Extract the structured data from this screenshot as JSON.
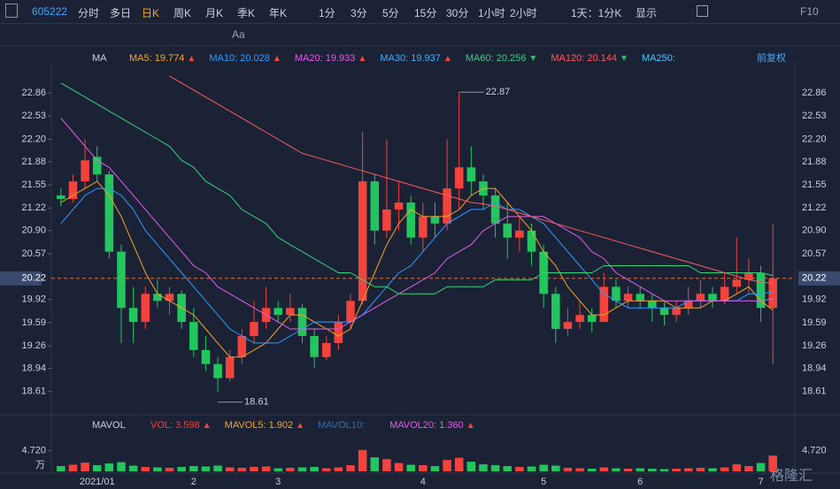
{
  "toolbar": {
    "code": "605222",
    "tabs": [
      "分时",
      "多日",
      "日K",
      "周K",
      "月K",
      "季K",
      "年K",
      "1分",
      "3分",
      "5分",
      "15分",
      "30分",
      "1小时",
      "2小时"
    ],
    "active_tab": 2,
    "period": "1天：1分K",
    "display": "显示",
    "f10": "F10",
    "text_tool": "Aa"
  },
  "chart_data": {
    "type": "candlestick",
    "ma_label": "MA",
    "adjust": "前复权",
    "legend": [
      {
        "label": "MA5: 19.774",
        "color": "#f5a623",
        "trend": "up"
      },
      {
        "label": "MA10: 20.028",
        "color": "#2f9bff",
        "trend": "up"
      },
      {
        "label": "MA20: 19.933",
        "color": "#e05ee8",
        "trend": "up"
      },
      {
        "label": "MA30: 19.937",
        "color": "#3ab0ff",
        "trend": "up"
      },
      {
        "label": "MA60: 20.256",
        "color": "#36d27a",
        "trend": "down"
      },
      {
        "label": "MA120: 20.144",
        "color": "#ff5a5a",
        "trend": "down"
      },
      {
        "label": "MA250:",
        "color": "#4fc3f7"
      }
    ],
    "categories": [
      null,
      null,
      null,
      "2021/01",
      null,
      null,
      null,
      null,
      null,
      null,
      null,
      "2",
      null,
      null,
      null,
      null,
      null,
      null,
      "3",
      null,
      null,
      null,
      null,
      null,
      null,
      null,
      null,
      null,
      null,
      null,
      "4",
      null,
      null,
      null,
      null,
      null,
      null,
      null,
      null,
      null,
      "5",
      null,
      null,
      null,
      null,
      null,
      null,
      null,
      "6",
      null,
      null,
      null,
      null,
      null,
      null,
      null,
      null,
      null,
      "7",
      null
    ],
    "candles": [
      [
        21.4,
        21.5,
        21.25,
        21.35
      ],
      [
        21.35,
        21.7,
        21.3,
        21.6
      ],
      [
        21.6,
        22.2,
        21.5,
        21.9
      ],
      [
        21.95,
        22.1,
        21.6,
        21.7
      ],
      [
        21.7,
        21.75,
        20.5,
        20.6
      ],
      [
        20.6,
        20.7,
        19.3,
        19.8
      ],
      [
        19.8,
        20.1,
        19.3,
        19.6
      ],
      [
        19.6,
        20.1,
        19.5,
        20.0
      ],
      [
        20.0,
        20.2,
        19.8,
        19.9
      ],
      [
        19.9,
        20.1,
        19.7,
        20.0
      ],
      [
        20.0,
        20.05,
        19.5,
        19.6
      ],
      [
        19.6,
        19.8,
        19.1,
        19.2
      ],
      [
        19.2,
        19.4,
        18.9,
        19.0
      ],
      [
        19.0,
        19.1,
        18.61,
        18.8
      ],
      [
        18.8,
        19.2,
        18.75,
        19.1
      ],
      [
        19.1,
        19.5,
        19.0,
        19.4
      ],
      [
        19.4,
        19.9,
        19.3,
        19.6
      ],
      [
        19.6,
        20.1,
        19.5,
        19.8
      ],
      [
        19.8,
        19.9,
        19.6,
        19.7
      ],
      [
        19.7,
        20.0,
        19.6,
        19.8
      ],
      [
        19.8,
        19.85,
        19.3,
        19.4
      ],
      [
        19.4,
        19.5,
        18.95,
        19.1
      ],
      [
        19.1,
        19.4,
        19.05,
        19.3
      ],
      [
        19.3,
        19.7,
        19.2,
        19.6
      ],
      [
        19.6,
        20.0,
        19.5,
        19.9
      ],
      [
        19.9,
        22.3,
        19.85,
        21.6
      ],
      [
        21.6,
        21.7,
        20.7,
        20.9
      ],
      [
        20.9,
        22.2,
        20.8,
        21.2
      ],
      [
        21.2,
        21.6,
        20.9,
        21.3
      ],
      [
        21.3,
        21.4,
        20.7,
        20.8
      ],
      [
        20.8,
        21.3,
        20.6,
        21.1
      ],
      [
        21.1,
        21.3,
        20.8,
        21.0
      ],
      [
        21.0,
        22.2,
        20.9,
        21.5
      ],
      [
        21.5,
        22.87,
        21.2,
        21.8
      ],
      [
        21.8,
        22.1,
        21.4,
        21.6
      ],
      [
        21.6,
        21.7,
        21.2,
        21.4
      ],
      [
        21.4,
        21.5,
        20.8,
        21.0
      ],
      [
        21.0,
        21.3,
        20.5,
        20.8
      ],
      [
        20.8,
        21.1,
        20.6,
        20.9
      ],
      [
        20.9,
        21.0,
        20.4,
        20.6
      ],
      [
        20.6,
        20.7,
        19.8,
        20.0
      ],
      [
        20.0,
        20.1,
        19.3,
        19.5
      ],
      [
        19.5,
        19.8,
        19.4,
        19.6
      ],
      [
        19.6,
        19.9,
        19.5,
        19.7
      ],
      [
        19.7,
        19.8,
        19.45,
        19.6
      ],
      [
        19.6,
        20.3,
        19.6,
        20.1
      ],
      [
        20.1,
        20.2,
        19.8,
        19.9
      ],
      [
        19.9,
        20.1,
        19.8,
        20.0
      ],
      [
        20.0,
        20.1,
        19.8,
        19.9
      ],
      [
        19.9,
        20.0,
        19.6,
        19.8
      ],
      [
        19.8,
        19.9,
        19.55,
        19.7
      ],
      [
        19.7,
        19.9,
        19.6,
        19.8
      ],
      [
        19.8,
        20.1,
        19.7,
        19.9
      ],
      [
        19.9,
        20.2,
        19.8,
        20.0
      ],
      [
        20.0,
        20.1,
        19.8,
        19.9
      ],
      [
        19.9,
        20.3,
        19.85,
        20.1
      ],
      [
        20.1,
        20.8,
        20.0,
        20.2
      ],
      [
        20.2,
        20.5,
        20.0,
        20.3
      ],
      [
        20.3,
        20.4,
        19.6,
        19.8
      ],
      [
        19.8,
        21.0,
        19.0,
        20.22
      ]
    ],
    "up_color": "#f2433d",
    "down_color": "#22c55e",
    "lines": [
      {
        "name": "MA5",
        "color": "#f5a623",
        "values": [
          21.3,
          21.4,
          21.5,
          21.6,
          21.4,
          21.1,
          20.7,
          20.3,
          20.0,
          19.9,
          19.8,
          19.7,
          19.5,
          19.3,
          19.1,
          19.1,
          19.2,
          19.3,
          19.5,
          19.7,
          19.7,
          19.6,
          19.5,
          19.4,
          19.5,
          19.9,
          20.3,
          20.7,
          21.0,
          21.2,
          21.1,
          21.1,
          21.1,
          21.2,
          21.4,
          21.5,
          21.5,
          21.3,
          21.1,
          20.9,
          20.6,
          20.4,
          20.1,
          19.9,
          19.7,
          19.7,
          19.8,
          19.9,
          19.9,
          19.9,
          19.9,
          19.8,
          19.8,
          19.8,
          19.9,
          19.9,
          20.0,
          20.1,
          19.9,
          19.77
        ]
      },
      {
        "name": "MA10",
        "color": "#2f9bff",
        "values": [
          21.0,
          21.2,
          21.4,
          21.5,
          21.5,
          21.4,
          21.2,
          20.9,
          20.7,
          20.5,
          20.3,
          20.1,
          19.9,
          19.7,
          19.5,
          19.4,
          19.3,
          19.3,
          19.3,
          19.4,
          19.5,
          19.6,
          19.6,
          19.6,
          19.6,
          19.7,
          19.9,
          20.1,
          20.3,
          20.4,
          20.6,
          20.8,
          21.0,
          21.1,
          21.2,
          21.2,
          21.3,
          21.2,
          21.2,
          21.1,
          21.0,
          20.8,
          20.6,
          20.4,
          20.2,
          20.0,
          19.9,
          19.8,
          19.8,
          19.8,
          19.8,
          19.8,
          19.9,
          19.9,
          19.9,
          19.9,
          19.9,
          20.0,
          20.0,
          20.03
        ]
      },
      {
        "name": "MA20",
        "color": "#e05ee8",
        "values": [
          22.5,
          22.3,
          22.1,
          21.9,
          21.8,
          21.6,
          21.4,
          21.2,
          21.0,
          20.8,
          20.6,
          20.4,
          20.3,
          20.1,
          20.0,
          19.9,
          19.8,
          19.7,
          19.6,
          19.5,
          19.5,
          19.5,
          19.5,
          19.5,
          19.6,
          19.7,
          19.8,
          19.9,
          20.0,
          20.1,
          20.2,
          20.3,
          20.5,
          20.6,
          20.7,
          20.9,
          21.0,
          21.1,
          21.1,
          21.1,
          21.1,
          21.0,
          20.9,
          20.8,
          20.6,
          20.5,
          20.3,
          20.2,
          20.1,
          20.0,
          19.9,
          19.9,
          19.9,
          19.9,
          19.9,
          19.9,
          19.9,
          19.9,
          19.9,
          19.93
        ]
      },
      {
        "name": "MA60",
        "color": "#36d27a",
        "values": [
          23.0,
          22.9,
          22.8,
          22.7,
          22.6,
          22.5,
          22.4,
          22.3,
          22.2,
          22.1,
          21.9,
          21.8,
          21.6,
          21.5,
          21.4,
          21.2,
          21.1,
          21.0,
          20.8,
          20.7,
          20.6,
          20.5,
          20.4,
          20.3,
          20.3,
          20.2,
          20.1,
          20.1,
          20.0,
          20.0,
          20.0,
          20.0,
          20.1,
          20.1,
          20.1,
          20.1,
          20.2,
          20.2,
          20.2,
          20.2,
          20.3,
          20.3,
          20.3,
          20.3,
          20.3,
          20.4,
          20.4,
          20.4,
          20.4,
          20.4,
          20.4,
          20.4,
          20.4,
          20.3,
          20.3,
          20.3,
          20.3,
          20.3,
          20.3,
          20.26
        ]
      },
      {
        "name": "MA120",
        "color": "#ff5a5a",
        "values": [
          null,
          null,
          null,
          null,
          null,
          null,
          null,
          null,
          null,
          23.1,
          23.0,
          22.9,
          22.8,
          22.7,
          22.6,
          22.5,
          22.4,
          22.3,
          22.2,
          22.1,
          22.0,
          21.95,
          21.9,
          21.85,
          21.8,
          21.75,
          21.7,
          21.65,
          21.6,
          21.55,
          21.5,
          21.45,
          21.4,
          21.35,
          21.3,
          21.28,
          21.25,
          21.2,
          21.15,
          21.1,
          21.05,
          21.0,
          20.95,
          20.9,
          20.85,
          20.8,
          20.75,
          20.7,
          20.65,
          20.6,
          20.55,
          20.5,
          20.45,
          20.4,
          20.35,
          20.3,
          20.25,
          20.2,
          20.17,
          20.144
        ]
      }
    ],
    "ylim": [
      18.33,
      23.2
    ],
    "yticks": [
      22.86,
      22.53,
      {
        "value": 22.2,
        "label": "22.20"
      },
      21.88,
      21.55,
      21.22,
      {
        "value": 20.9,
        "label": "20.90"
      },
      20.57,
      19.92,
      19.59,
      19.26,
      18.94,
      18.61
    ],
    "last_price": 20.22,
    "annotations": {
      "max": "22.87",
      "min": "18.61"
    },
    "volume": {
      "title": "MAVOL",
      "legend": [
        {
          "label": "VOL: 3.598",
          "color": "#f2433d",
          "trend": "up"
        },
        {
          "label": "MAVOL5: 1.902",
          "color": "#f5a623",
          "trend": "up"
        },
        {
          "label": "MAVOL10:",
          "color": "#2f6fb0"
        },
        {
          "label": "MAVOL20: 1.360",
          "color": "#e05ee8",
          "trend": "up"
        }
      ],
      "values": [
        1.2,
        1.5,
        2.0,
        1.4,
        1.8,
        2.1,
        1.3,
        1.0,
        0.9,
        0.8,
        1.0,
        1.2,
        1.1,
        1.3,
        0.9,
        0.8,
        1.0,
        1.1,
        0.7,
        0.8,
        0.9,
        1.0,
        0.7,
        0.9,
        1.4,
        4.9,
        3.2,
        2.8,
        1.9,
        1.5,
        1.4,
        1.2,
        2.6,
        3.1,
        2.2,
        1.6,
        1.4,
        1.2,
        1.0,
        1.1,
        1.5,
        1.3,
        0.8,
        0.7,
        0.6,
        0.9,
        0.7,
        0.6,
        0.7,
        0.6,
        0.5,
        0.6,
        0.7,
        0.8,
        0.7,
        0.9,
        1.6,
        1.2,
        1.9,
        3.598
      ],
      "ylim": [
        0,
        8.5
      ],
      "yticks": [
        {
          "value": 4.72,
          "label": "4.720"
        }
      ],
      "unit": "万"
    }
  },
  "watermark": "格隆汇"
}
